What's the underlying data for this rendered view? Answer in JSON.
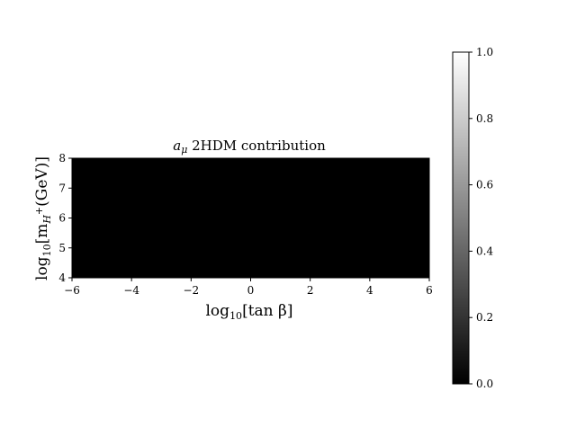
{
  "chart_data": {
    "type": "heatmap",
    "title": "a_μ 2HDM contribution",
    "title_parts": {
      "sym": "a",
      "sub": "μ",
      "rest": " 2HDM  contribution"
    },
    "xlabel_parts": {
      "pre": "log",
      "sub": "10",
      "rest": "[tan β]"
    },
    "ylabel_parts": {
      "pre": "log",
      "sub": "10",
      "mid": "[m",
      "sub2": "H",
      "sup": "+",
      "rest": "(GeV)]"
    },
    "xlim": [
      -6,
      6
    ],
    "ylim": [
      4,
      8
    ],
    "xticks": [
      -6,
      -4,
      -2,
      0,
      2,
      4,
      6
    ],
    "yticks": [
      4,
      5,
      6,
      7,
      8
    ],
    "xtick_labels": [
      "−6",
      "−4",
      "−2",
      "0",
      "2",
      "4",
      "6"
    ],
    "ytick_labels": [
      "4",
      "5",
      "6",
      "7",
      "8"
    ],
    "values": [
      [
        0
      ]
    ],
    "colormap": "gray",
    "colorbar": {
      "min": 0.0,
      "max": 1.0,
      "ticks": [
        0.0,
        0.2,
        0.4,
        0.6,
        0.8,
        1.0
      ],
      "tick_labels": [
        "0.0",
        "0.2",
        "0.4",
        "0.6",
        "0.8",
        "1.0"
      ]
    },
    "grid": false
  }
}
